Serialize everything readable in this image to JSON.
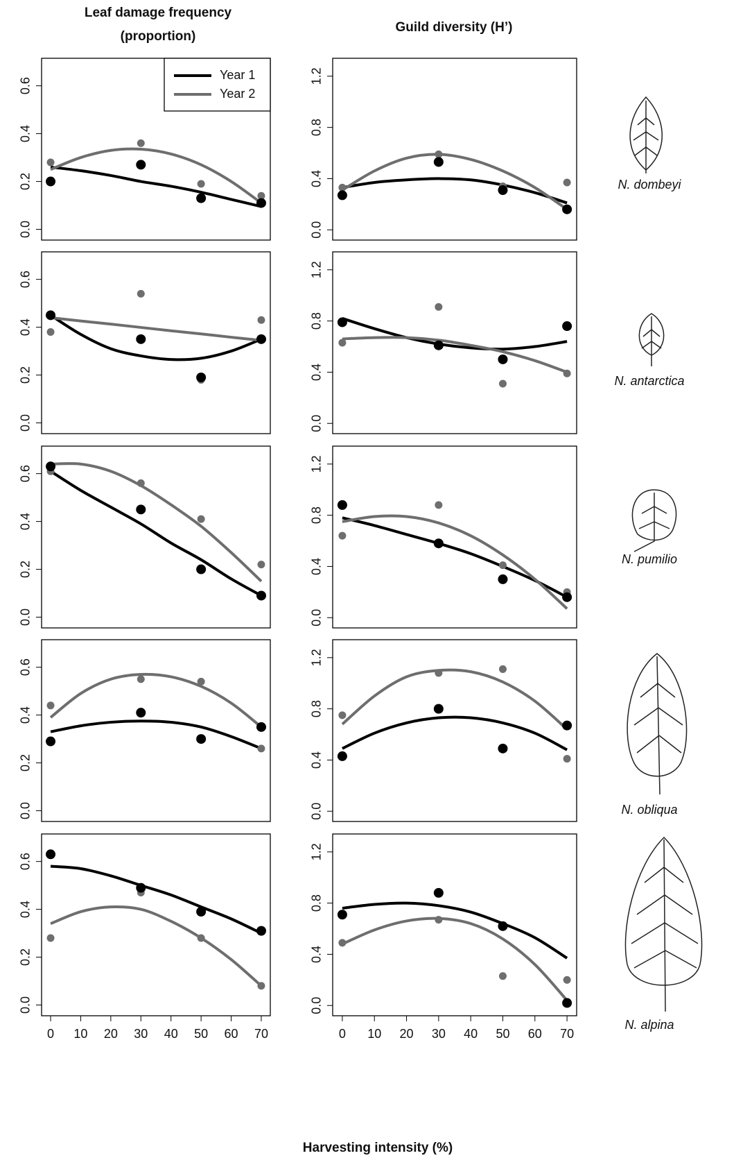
{
  "columns": [
    {
      "title": [
        "Leaf damage frequency",
        "(proportion)"
      ]
    },
    {
      "title": [
        "Guild diversity (H’)"
      ]
    }
  ],
  "x_label": "Harvesting intensity (%)",
  "species": [
    "N. dombeyi",
    "N. antarctica",
    "N. pumilio",
    "N. obliqua",
    "N. alpina"
  ],
  "chart_data": [
    {
      "type": "scatter",
      "legend": "top-right",
      "x": [
        0,
        30,
        50,
        70
      ],
      "fit_x": [
        0,
        10,
        20,
        30,
        40,
        50,
        60,
        70
      ],
      "xlim": [
        -3,
        73
      ],
      "ylim": [
        -0.045,
        0.715
      ],
      "yticks": [
        {
          "value": 0,
          "label": "0.0"
        },
        0.2,
        0.4,
        0.6
      ],
      "series": [
        {
          "name": "Year 1",
          "color": "#000000",
          "values": [
            0.2,
            0.27,
            0.13,
            0.11
          ],
          "fit": [
            0.26,
            0.245,
            0.225,
            0.2,
            0.18,
            0.155,
            0.125,
            0.095
          ]
        },
        {
          "name": "Year 2",
          "color": "#6e6e6e",
          "values": [
            0.28,
            0.36,
            0.19,
            0.14
          ],
          "fit": [
            0.25,
            0.3,
            0.33,
            0.335,
            0.315,
            0.27,
            0.2,
            0.11
          ]
        }
      ]
    },
    {
      "type": "scatter",
      "x": [
        0,
        30,
        50,
        70
      ],
      "fit_x": [
        0,
        10,
        20,
        30,
        40,
        50,
        60,
        70
      ],
      "xlim": [
        -3,
        73
      ],
      "ylim": [
        -0.08,
        1.34
      ],
      "yticks": [
        {
          "value": 0,
          "label": "0.0"
        },
        0.4,
        0.8,
        1.2
      ],
      "series": [
        {
          "color": "#000000",
          "values": [
            0.27,
            0.53,
            0.31,
            0.16
          ],
          "fit": [
            0.33,
            0.37,
            0.39,
            0.4,
            0.39,
            0.35,
            0.29,
            0.21
          ]
        },
        {
          "color": "#6e6e6e",
          "values": [
            0.33,
            0.59,
            0.34,
            0.37
          ],
          "fit": [
            0.31,
            0.46,
            0.56,
            0.59,
            0.55,
            0.46,
            0.33,
            0.16
          ]
        }
      ]
    },
    {
      "type": "scatter",
      "x": [
        0,
        30,
        50,
        70
      ],
      "fit_x": [
        0,
        10,
        20,
        30,
        40,
        50,
        60,
        70
      ],
      "xlim": [
        -3,
        73
      ],
      "ylim": [
        -0.045,
        0.715
      ],
      "yticks": [
        {
          "value": 0,
          "label": "0.0"
        },
        0.2,
        0.4,
        0.6
      ],
      "series": [
        {
          "color": "#000000",
          "values": [
            0.45,
            0.35,
            0.19,
            0.35
          ],
          "fit": [
            0.45,
            0.37,
            0.31,
            0.28,
            0.265,
            0.27,
            0.3,
            0.35
          ]
        },
        {
          "color": "#6e6e6e",
          "values": [
            0.38,
            0.54,
            0.18,
            0.43
          ],
          "fit": [
            0.44,
            0.426,
            0.413,
            0.399,
            0.385,
            0.372,
            0.358,
            0.345
          ]
        }
      ]
    },
    {
      "type": "scatter",
      "x": [
        0,
        30,
        50,
        70
      ],
      "fit_x": [
        0,
        10,
        20,
        30,
        40,
        50,
        60,
        70
      ],
      "xlim": [
        -3,
        73
      ],
      "ylim": [
        -0.08,
        1.34
      ],
      "yticks": [
        {
          "value": 0,
          "label": "0.0"
        },
        0.4,
        0.8,
        1.2
      ],
      "series": [
        {
          "color": "#000000",
          "values": [
            0.79,
            0.61,
            0.5,
            0.76
          ],
          "fit": [
            0.82,
            0.74,
            0.67,
            0.62,
            0.59,
            0.58,
            0.6,
            0.64
          ]
        },
        {
          "color": "#6e6e6e",
          "values": [
            0.63,
            0.91,
            0.31,
            0.39
          ],
          "fit": [
            0.66,
            0.67,
            0.67,
            0.65,
            0.61,
            0.56,
            0.49,
            0.4
          ]
        }
      ]
    },
    {
      "type": "scatter",
      "x": [
        0,
        30,
        50,
        70
      ],
      "fit_x": [
        0,
        10,
        20,
        30,
        40,
        50,
        60,
        70
      ],
      "xlim": [
        -3,
        73
      ],
      "ylim": [
        -0.045,
        0.715
      ],
      "yticks": [
        {
          "value": 0,
          "label": "0.0"
        },
        0.2,
        0.4,
        0.6
      ],
      "series": [
        {
          "color": "#000000",
          "values": [
            0.63,
            0.45,
            0.2,
            0.09
          ],
          "fit": [
            0.61,
            0.53,
            0.46,
            0.39,
            0.31,
            0.24,
            0.16,
            0.09
          ]
        },
        {
          "color": "#6e6e6e",
          "values": [
            0.61,
            0.56,
            0.41,
            0.22
          ],
          "fit": [
            0.64,
            0.64,
            0.61,
            0.55,
            0.47,
            0.38,
            0.27,
            0.15
          ]
        }
      ]
    },
    {
      "type": "scatter",
      "x": [
        0,
        30,
        50,
        70
      ],
      "fit_x": [
        0,
        10,
        20,
        30,
        40,
        50,
        60,
        70
      ],
      "xlim": [
        -3,
        73
      ],
      "ylim": [
        -0.08,
        1.34
      ],
      "yticks": [
        {
          "value": 0,
          "label": "0.0"
        },
        0.4,
        0.8,
        1.2
      ],
      "series": [
        {
          "color": "#000000",
          "values": [
            0.88,
            0.58,
            0.3,
            0.16
          ],
          "fit": [
            0.78,
            0.72,
            0.65,
            0.58,
            0.5,
            0.4,
            0.29,
            0.16
          ]
        },
        {
          "color": "#6e6e6e",
          "values": [
            0.64,
            0.88,
            0.41,
            0.2
          ],
          "fit": [
            0.75,
            0.79,
            0.79,
            0.74,
            0.64,
            0.49,
            0.3,
            0.07
          ]
        }
      ]
    },
    {
      "type": "scatter",
      "x": [
        0,
        30,
        50,
        70
      ],
      "fit_x": [
        0,
        10,
        20,
        30,
        40,
        50,
        60,
        70
      ],
      "xlim": [
        -3,
        73
      ],
      "ylim": [
        -0.045,
        0.715
      ],
      "yticks": [
        {
          "value": 0,
          "label": "0.0"
        },
        0.2,
        0.4,
        0.6
      ],
      "series": [
        {
          "color": "#000000",
          "values": [
            0.29,
            0.41,
            0.3,
            0.35
          ],
          "fit": [
            0.33,
            0.355,
            0.37,
            0.375,
            0.37,
            0.35,
            0.31,
            0.26
          ]
        },
        {
          "color": "#6e6e6e",
          "values": [
            0.44,
            0.55,
            0.54,
            0.26
          ],
          "fit": [
            0.39,
            0.49,
            0.55,
            0.57,
            0.56,
            0.52,
            0.45,
            0.35
          ]
        }
      ]
    },
    {
      "type": "scatter",
      "x": [
        0,
        30,
        50,
        70
      ],
      "fit_x": [
        0,
        10,
        20,
        30,
        40,
        50,
        60,
        70
      ],
      "xlim": [
        -3,
        73
      ],
      "ylim": [
        -0.08,
        1.34
      ],
      "yticks": [
        {
          "value": 0,
          "label": "0.0"
        },
        0.4,
        0.8,
        1.2
      ],
      "series": [
        {
          "color": "#000000",
          "values": [
            0.43,
            0.8,
            0.49,
            0.67
          ],
          "fit": [
            0.49,
            0.61,
            0.69,
            0.73,
            0.73,
            0.69,
            0.61,
            0.48
          ]
        },
        {
          "color": "#6e6e6e",
          "values": [
            0.75,
            1.08,
            1.11,
            0.41
          ],
          "fit": [
            0.68,
            0.9,
            1.05,
            1.1,
            1.09,
            1.01,
            0.86,
            0.64
          ]
        }
      ]
    },
    {
      "type": "scatter",
      "x": [
        0,
        30,
        50,
        70
      ],
      "fit_x": [
        0,
        10,
        20,
        30,
        40,
        50,
        60,
        70
      ],
      "xlim": [
        -3,
        73
      ],
      "ylim": [
        -0.045,
        0.715
      ],
      "xticks": [
        0,
        10,
        20,
        30,
        40,
        50,
        60,
        70
      ],
      "yticks": [
        {
          "value": 0,
          "label": "0.0"
        },
        0.2,
        0.4,
        0.6
      ],
      "series": [
        {
          "color": "#000000",
          "values": [
            0.63,
            0.49,
            0.39,
            0.31
          ],
          "fit": [
            0.58,
            0.57,
            0.54,
            0.5,
            0.46,
            0.41,
            0.36,
            0.3
          ]
        },
        {
          "color": "#6e6e6e",
          "values": [
            0.28,
            0.47,
            0.28,
            0.08
          ],
          "fit": [
            0.34,
            0.39,
            0.41,
            0.4,
            0.35,
            0.28,
            0.19,
            0.08
          ]
        }
      ]
    },
    {
      "type": "scatter",
      "x": [
        0,
        30,
        50,
        70
      ],
      "fit_x": [
        0,
        10,
        20,
        30,
        40,
        50,
        60,
        70
      ],
      "xlim": [
        -3,
        73
      ],
      "ylim": [
        -0.08,
        1.34
      ],
      "xticks": [
        0,
        10,
        20,
        30,
        40,
        50,
        60,
        70
      ],
      "yticks": [
        {
          "value": 0,
          "label": "0.0"
        },
        0.4,
        0.8,
        1.2
      ],
      "series": [
        {
          "color": "#000000",
          "values": [
            0.71,
            0.88,
            0.62,
            0.02
          ],
          "fit": [
            0.76,
            0.79,
            0.8,
            0.78,
            0.73,
            0.64,
            0.53,
            0.37
          ]
        },
        {
          "color": "#6e6e6e",
          "values": [
            0.49,
            0.67,
            0.23,
            0.2
          ],
          "fit": [
            0.48,
            0.59,
            0.66,
            0.68,
            0.64,
            0.52,
            0.32,
            0.04
          ]
        }
      ]
    }
  ]
}
